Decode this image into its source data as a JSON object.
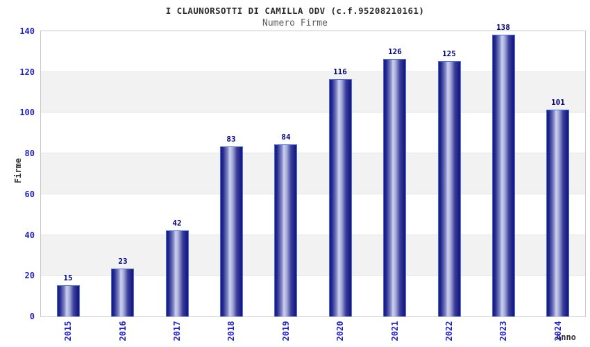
{
  "chart_data": {
    "type": "bar",
    "title": "I CLAUNORSOTTI DI CAMILLA ODV (c.f.95208210161)",
    "subtitle": "Numero Firme",
    "categories": [
      "2015",
      "2016",
      "2017",
      "2018",
      "2019",
      "2020",
      "2021",
      "2022",
      "2023",
      "2024"
    ],
    "values": [
      15,
      23,
      42,
      83,
      84,
      116,
      126,
      125,
      138,
      101
    ],
    "xlabel": "Anno",
    "ylabel": "Firme",
    "ylim": [
      0,
      140
    ],
    "yticks": [
      0,
      20,
      40,
      60,
      80,
      100,
      120,
      140
    ],
    "grid": "alternating-horizontal-bands",
    "legend": false,
    "bar_value_labels_shown": true,
    "style": {
      "bar_edge_color": "#191980",
      "bar_mid_color": "#cdd1ec",
      "bar_border_color": "#4a6fe0",
      "axis_tick_color": "#2222cc",
      "value_label_color": "#00007b",
      "band_white": "#ffffff",
      "band_gray": "#f2f2f2",
      "gridline_color": "#e3e3e3",
      "plot_border_color": "#c8c8c8",
      "title_color": "#2b2b2b",
      "subtitle_color": "#5f5f5f",
      "axis_title_color": "#333333"
    }
  }
}
